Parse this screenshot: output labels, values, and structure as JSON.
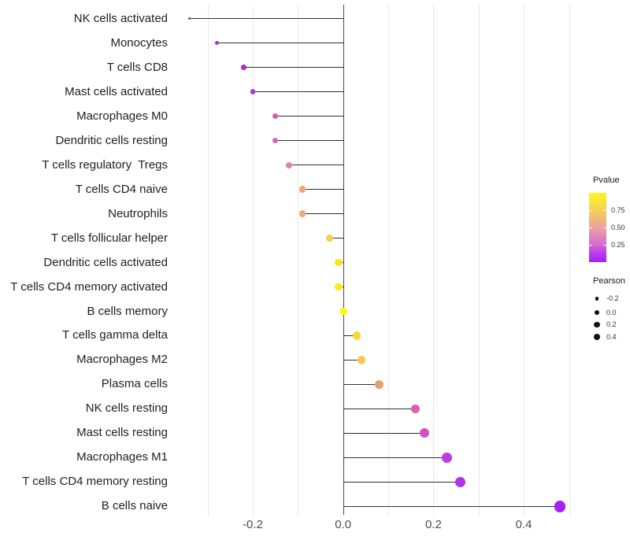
{
  "chart_data": {
    "type": "scatter",
    "variant": "lollipop",
    "title": "",
    "xlabel": "",
    "ylabel": "",
    "xlim": [
      -0.375,
      0.515
    ],
    "grid": "vertical-only",
    "gridlines": [
      -0.3,
      -0.2,
      -0.1,
      0.0,
      0.1,
      0.2,
      0.3,
      0.4,
      0.5
    ],
    "x_ticks": [
      {
        "value": -0.2,
        "label": "-0.2"
      },
      {
        "value": 0.0,
        "label": "0.0"
      },
      {
        "value": 0.2,
        "label": "0.2"
      },
      {
        "value": 0.4,
        "label": "0.4"
      }
    ],
    "points": [
      {
        "category": "NK cells activated",
        "pearson": -0.34,
        "color": "#8F30C0"
      },
      {
        "category": "Monocytes",
        "pearson": -0.28,
        "color": "#A233CC"
      },
      {
        "category": "T cells CD8",
        "pearson": -0.22,
        "color": "#A62EC4"
      },
      {
        "category": "Mast cells activated",
        "pearson": -0.2,
        "color": "#AC38C6"
      },
      {
        "category": "Macrophages M0",
        "pearson": -0.15,
        "color": "#D05FB2"
      },
      {
        "category": "Dendritic cells resting",
        "pearson": -0.15,
        "color": "#D268B0"
      },
      {
        "category": "T cells regulatory  Tregs",
        "pearson": -0.12,
        "color": "#DF85A2"
      },
      {
        "category": "T cells CD4 naive",
        "pearson": -0.09,
        "color": "#ECA67C"
      },
      {
        "category": "Neutrophils",
        "pearson": -0.09,
        "color": "#ECA87E"
      },
      {
        "category": "T cells follicular helper",
        "pearson": -0.03,
        "color": "#F0D04C"
      },
      {
        "category": "Dendritic cells activated",
        "pearson": -0.01,
        "color": "#F6E51F"
      },
      {
        "category": "T cells CD4 memory activated",
        "pearson": -0.01,
        "color": "#F8EB16"
      },
      {
        "category": "B cells memory",
        "pearson": 0.0,
        "color": "#FDF906"
      },
      {
        "category": "T cells gamma delta",
        "pearson": 0.03,
        "color": "#F5DA3A"
      },
      {
        "category": "Macrophages M2",
        "pearson": 0.04,
        "color": "#F3CA4E"
      },
      {
        "category": "Plasma cells",
        "pearson": 0.08,
        "color": "#E5A071"
      },
      {
        "category": "NK cells resting",
        "pearson": 0.16,
        "color": "#D75FB5"
      },
      {
        "category": "Mast cells resting",
        "pearson": 0.18,
        "color": "#CC52C6"
      },
      {
        "category": "Macrophages M1",
        "pearson": 0.23,
        "color": "#BE3BE2"
      },
      {
        "category": "T cells CD4 memory resting",
        "pearson": 0.26,
        "color": "#B232EC"
      },
      {
        "category": "B cells naive",
        "pearson": 0.48,
        "color": "#A621F2"
      }
    ],
    "legends": {
      "pvalue": {
        "title": "Pvalue",
        "tick_labels": [
          "0.75",
          "0.50",
          "0.25"
        ],
        "gradient_top_color": "#FCF521",
        "gradient_bottom_color": "#A322F2"
      },
      "pearson": {
        "title": "Pearson",
        "items": [
          {
            "label": "-0.2"
          },
          {
            "label": "0.0"
          },
          {
            "label": "0.2"
          },
          {
            "label": "0.4"
          }
        ]
      }
    }
  }
}
